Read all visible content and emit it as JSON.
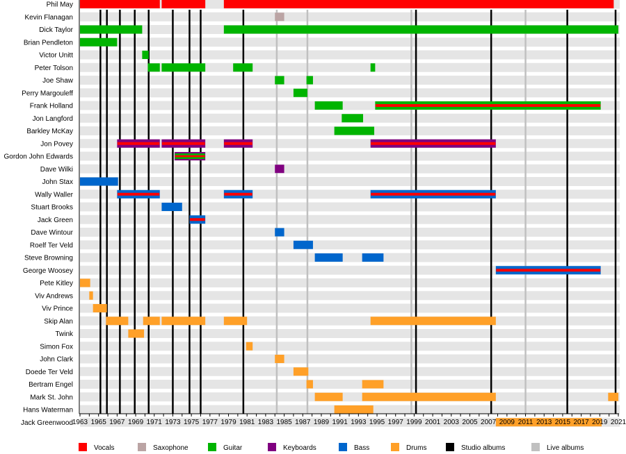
{
  "chart_data": {
    "type": "timeline",
    "xlim": [
      1963,
      2021
    ],
    "x_ticks": [
      1963,
      1965,
      1967,
      1969,
      1971,
      1973,
      1975,
      1977,
      1979,
      1981,
      1983,
      1985,
      1987,
      1989,
      1991,
      1993,
      1995,
      1997,
      1999,
      2001,
      2003,
      2005,
      2007,
      2009,
      2011,
      2013,
      2015,
      2017,
      2019,
      2021
    ],
    "colors": {
      "vocals": "#ff0000",
      "saxophone": "#bba4a4",
      "guitar": "#00b400",
      "keyboards": "#800080",
      "bass": "#0066cc",
      "drums": "#ffa028",
      "studio": "#000000",
      "live": "#c0c0c0"
    },
    "legend": [
      {
        "key": "vocals",
        "label": "Vocals"
      },
      {
        "key": "saxophone",
        "label": "Saxophone"
      },
      {
        "key": "guitar",
        "label": "Guitar"
      },
      {
        "key": "keyboards",
        "label": "Keyboards"
      },
      {
        "key": "bass",
        "label": "Bass"
      },
      {
        "key": "drums",
        "label": "Drums"
      },
      {
        "key": "studio",
        "label": "Studio albums"
      },
      {
        "key": "live",
        "label": "Live albums"
      }
    ],
    "studio_albums": [
      1965.2,
      1965.9,
      1967.3,
      1968.9,
      1970.4,
      1973.0,
      1974.8,
      1976.0,
      1980.6,
      1999.2,
      2007.3,
      2015.5,
      2020.7
    ],
    "live_albums": [
      1984.2,
      1987.5,
      1998.7,
      2011.0
    ],
    "members": [
      {
        "name": "Phil May",
        "bars": [
          {
            "from": 1963,
            "to": 1971.6,
            "roles": [
              "vocals"
            ]
          },
          {
            "from": 1971.8,
            "to": 1976.5,
            "roles": [
              "vocals"
            ]
          },
          {
            "from": 1978.5,
            "to": 2020.5,
            "roles": [
              "vocals"
            ]
          }
        ]
      },
      {
        "name": "Kevin Flanagan",
        "bars": [
          {
            "from": 1984.0,
            "to": 1985.0,
            "roles": [
              "saxophone"
            ]
          }
        ]
      },
      {
        "name": "Dick Taylor",
        "bars": [
          {
            "from": 1963,
            "to": 1969.7,
            "roles": [
              "guitar"
            ]
          },
          {
            "from": 1978.5,
            "to": 2021,
            "roles": [
              "guitar"
            ]
          }
        ]
      },
      {
        "name": "Brian Pendleton",
        "bars": [
          {
            "from": 1963,
            "to": 1967,
            "roles": [
              "guitar"
            ]
          }
        ]
      },
      {
        "name": "Victor Unitt",
        "bars": [
          {
            "from": 1969.7,
            "to": 1970.4,
            "roles": [
              "guitar"
            ]
          }
        ]
      },
      {
        "name": "Peter Tolson",
        "bars": [
          {
            "from": 1970.3,
            "to": 1971.6,
            "roles": [
              "guitar"
            ]
          },
          {
            "from": 1971.8,
            "to": 1976.5,
            "roles": [
              "guitar"
            ]
          },
          {
            "from": 1979.5,
            "to": 1981.6,
            "roles": [
              "guitar"
            ]
          },
          {
            "from": 1994.3,
            "to": 1994.8,
            "roles": [
              "guitar"
            ]
          }
        ]
      },
      {
        "name": "Joe Shaw",
        "bars": [
          {
            "from": 1984.0,
            "to": 1985.0,
            "roles": [
              "guitar"
            ]
          },
          {
            "from": 1987.4,
            "to": 1988.1,
            "roles": [
              "guitar"
            ]
          }
        ]
      },
      {
        "name": "Perry Margouleff",
        "bars": [
          {
            "from": 1986.0,
            "to": 1987.5,
            "roles": [
              "guitar"
            ]
          }
        ]
      },
      {
        "name": "Frank Holland",
        "bars": [
          {
            "from": 1988.3,
            "to": 1991.3,
            "roles": [
              "guitar"
            ]
          },
          {
            "from": 1994.8,
            "to": 2019.1,
            "roles": [
              "guitar",
              "vocals"
            ]
          }
        ]
      },
      {
        "name": "Jon Langford",
        "bars": [
          {
            "from": 1991.2,
            "to": 1993.5,
            "roles": [
              "guitar"
            ]
          }
        ]
      },
      {
        "name": "Barkley McKay",
        "bars": [
          {
            "from": 1990.4,
            "to": 1994.7,
            "roles": [
              "guitar"
            ]
          }
        ]
      },
      {
        "name": "Jon Povey",
        "bars": [
          {
            "from": 1967,
            "to": 1971.6,
            "roles": [
              "keyboards",
              "vocals"
            ]
          },
          {
            "from": 1971.8,
            "to": 1976.5,
            "roles": [
              "keyboards",
              "vocals"
            ]
          },
          {
            "from": 1978.5,
            "to": 1981.6,
            "roles": [
              "keyboards",
              "vocals"
            ]
          },
          {
            "from": 1994.3,
            "to": 2007.8,
            "roles": [
              "keyboards",
              "vocals"
            ]
          }
        ]
      },
      {
        "name": "Gordon John Edwards",
        "bars": [
          {
            "from": 1973.2,
            "to": 1976.5,
            "roles": [
              "keyboards",
              "guitar",
              "vocals"
            ]
          }
        ]
      },
      {
        "name": "Dave Wilki",
        "bars": [
          {
            "from": 1984.0,
            "to": 1985.0,
            "roles": [
              "keyboards"
            ]
          }
        ]
      },
      {
        "name": "John Stax",
        "bars": [
          {
            "from": 1963,
            "to": 1967.1,
            "roles": [
              "bass"
            ]
          }
        ]
      },
      {
        "name": "Wally Waller",
        "bars": [
          {
            "from": 1967,
            "to": 1971.6,
            "roles": [
              "bass",
              "vocals"
            ]
          },
          {
            "from": 1978.5,
            "to": 1981.6,
            "roles": [
              "bass",
              "vocals"
            ]
          },
          {
            "from": 1994.3,
            "to": 2007.8,
            "roles": [
              "bass",
              "vocals"
            ]
          }
        ]
      },
      {
        "name": "Stuart Brooks",
        "bars": [
          {
            "from": 1971.8,
            "to": 1974,
            "roles": [
              "bass"
            ]
          }
        ]
      },
      {
        "name": "Jack Green",
        "bars": [
          {
            "from": 1974.8,
            "to": 1976.5,
            "roles": [
              "bass",
              "vocals"
            ]
          }
        ]
      },
      {
        "name": "Dave Wintour",
        "bars": [
          {
            "from": 1984.0,
            "to": 1985.0,
            "roles": [
              "bass"
            ]
          }
        ]
      },
      {
        "name": "Roelf Ter Veld",
        "bars": [
          {
            "from": 1986.0,
            "to": 1988.1,
            "roles": [
              "bass"
            ]
          }
        ]
      },
      {
        "name": "Steve Browning",
        "bars": [
          {
            "from": 1988.3,
            "to": 1991.3,
            "roles": [
              "bass"
            ]
          },
          {
            "from": 1993.4,
            "to": 1995.7,
            "roles": [
              "bass"
            ]
          }
        ]
      },
      {
        "name": "George Woosey",
        "bars": [
          {
            "from": 2007.8,
            "to": 2019.1,
            "roles": [
              "bass",
              "vocals"
            ]
          }
        ]
      },
      {
        "name": "Pete Kitley",
        "bars": [
          {
            "from": 1963,
            "to": 1964.1,
            "roles": [
              "drums"
            ]
          }
        ]
      },
      {
        "name": "Viv Andrews",
        "bars": [
          {
            "from": 1964.0,
            "to": 1964.4,
            "roles": [
              "drums"
            ]
          }
        ]
      },
      {
        "name": "Viv Prince",
        "bars": [
          {
            "from": 1964.4,
            "to": 1965.9,
            "roles": [
              "drums"
            ]
          }
        ]
      },
      {
        "name": "Skip Alan",
        "bars": [
          {
            "from": 1965.8,
            "to": 1968.2,
            "roles": [
              "drums"
            ]
          },
          {
            "from": 1969.8,
            "to": 1971.6,
            "roles": [
              "drums"
            ]
          },
          {
            "from": 1971.8,
            "to": 1976.5,
            "roles": [
              "drums"
            ]
          },
          {
            "from": 1978.5,
            "to": 1981.0,
            "roles": [
              "drums"
            ]
          },
          {
            "from": 1994.3,
            "to": 2007.8,
            "roles": [
              "drums"
            ]
          }
        ]
      },
      {
        "name": "Twink",
        "bars": [
          {
            "from": 1968.2,
            "to": 1969.9,
            "roles": [
              "drums"
            ]
          }
        ]
      },
      {
        "name": "Simon Fox",
        "bars": [
          {
            "from": 1980.9,
            "to": 1981.6,
            "roles": [
              "drums"
            ]
          }
        ]
      },
      {
        "name": "John Clark",
        "bars": [
          {
            "from": 1984.0,
            "to": 1985.0,
            "roles": [
              "drums"
            ]
          }
        ]
      },
      {
        "name": "Doede Ter Veld",
        "bars": [
          {
            "from": 1986.0,
            "to": 1987.6,
            "roles": [
              "drums"
            ]
          }
        ]
      },
      {
        "name": "Bertram Engel",
        "bars": [
          {
            "from": 1987.4,
            "to": 1988.1,
            "roles": [
              "drums"
            ]
          },
          {
            "from": 1993.4,
            "to": 1995.7,
            "roles": [
              "drums"
            ]
          }
        ]
      },
      {
        "name": "Mark St. John",
        "bars": [
          {
            "from": 1988.3,
            "to": 1991.3,
            "roles": [
              "drums"
            ]
          },
          {
            "from": 1993.4,
            "to": 2007.8,
            "roles": [
              "drums"
            ]
          },
          {
            "from": 2019.9,
            "to": 2021,
            "roles": [
              "drums"
            ]
          }
        ]
      },
      {
        "name": "Hans Waterman",
        "bars": [
          {
            "from": 1990.4,
            "to": 1994.6,
            "roles": [
              "drums"
            ]
          }
        ]
      },
      {
        "name": "Jack Greenwood",
        "bars": [
          {
            "from": 2007.8,
            "to": 2019.2,
            "roles": [
              "drums"
            ]
          }
        ]
      }
    ]
  }
}
